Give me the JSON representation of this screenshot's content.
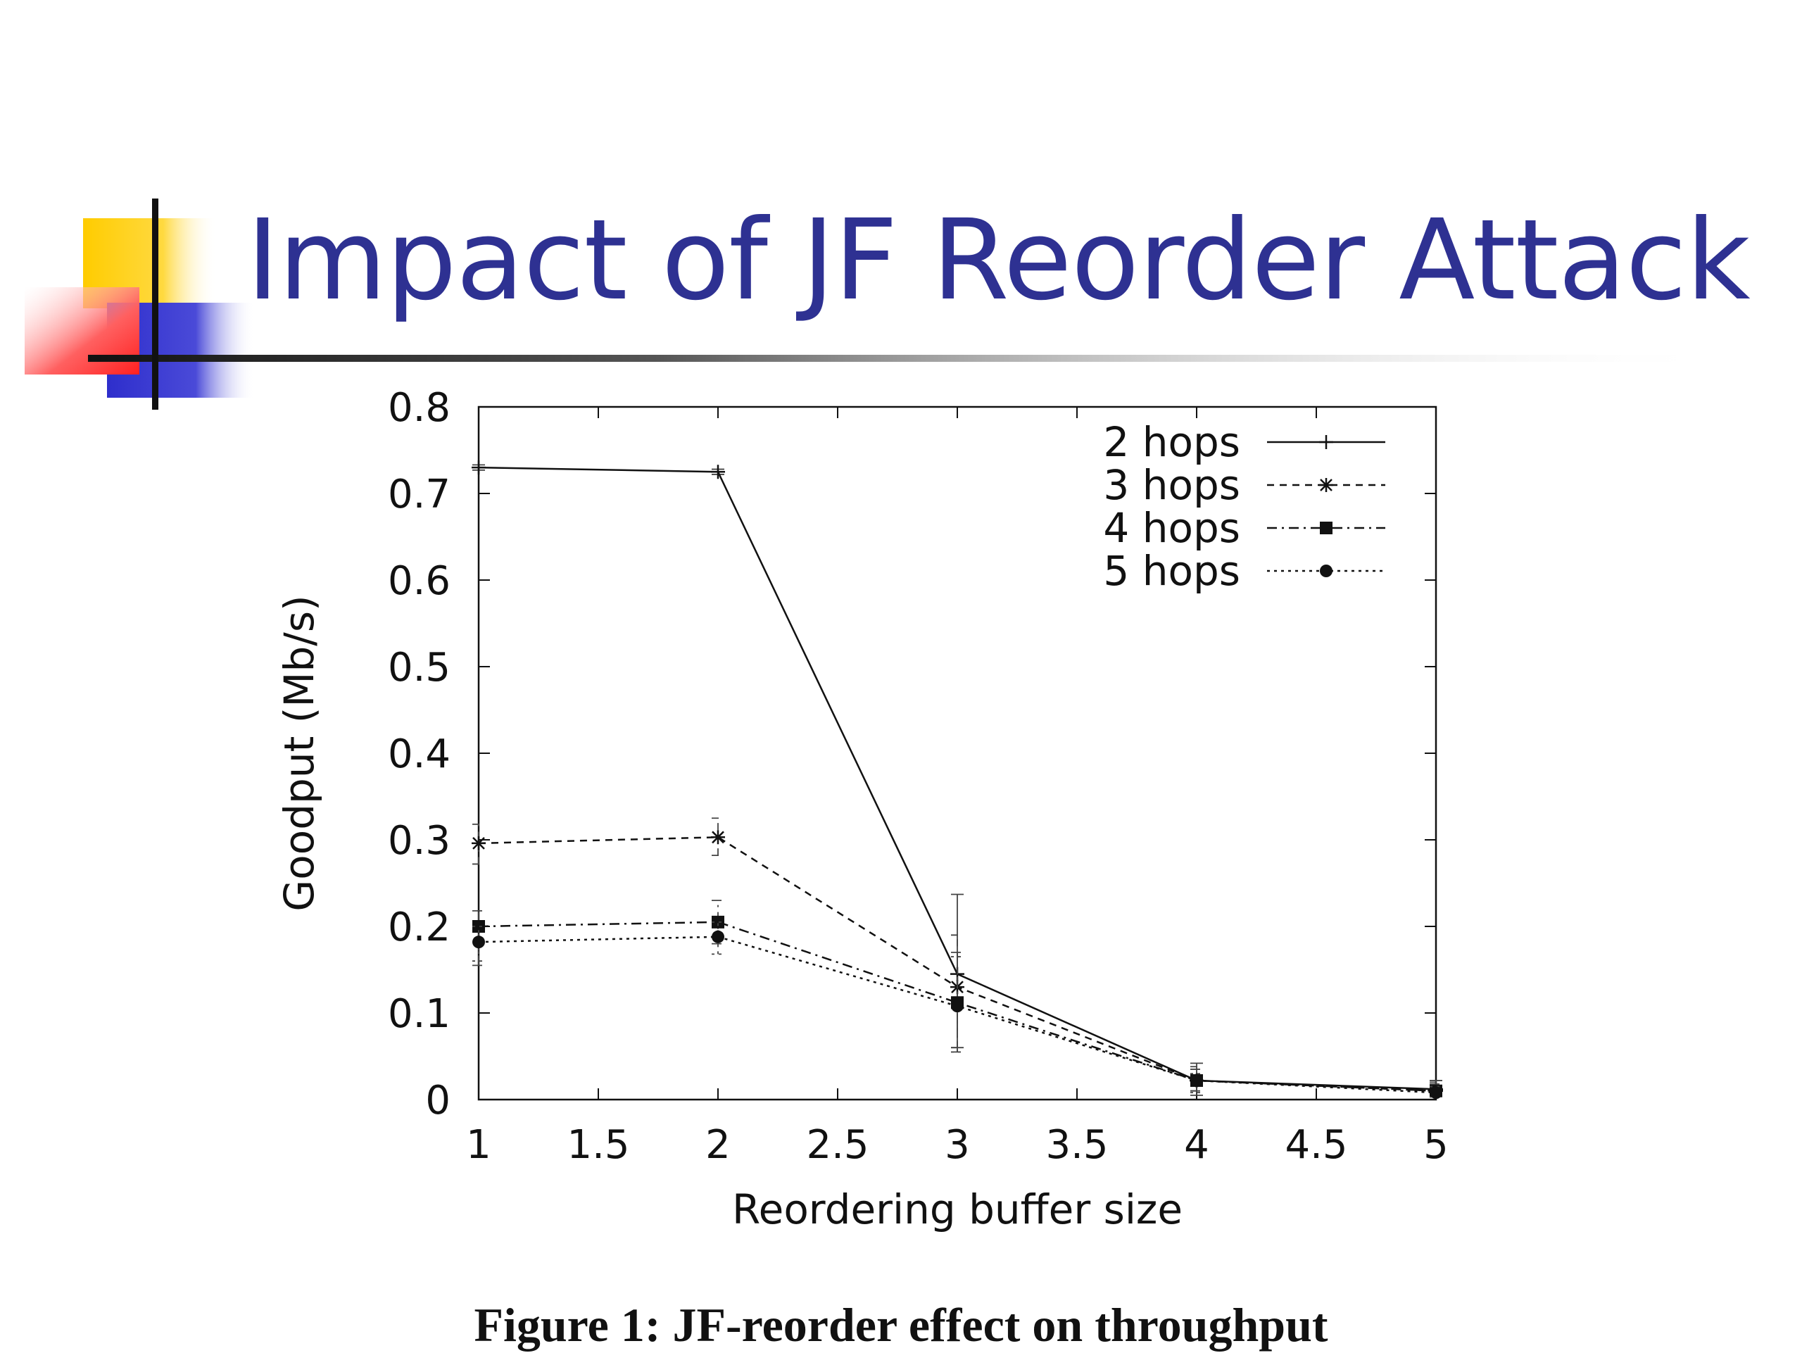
{
  "slide": {
    "title": "Impact of JF Reorder Attack",
    "caption": "Figure 1: JF-reorder effect on throughput"
  },
  "colors": {
    "title": "#2E3192",
    "accent_yellow": "#FFCC00",
    "accent_red": "#FF3333",
    "accent_blue": "#3333CC"
  },
  "chart_data": {
    "type": "line",
    "xlabel": "Reordering buffer size",
    "ylabel": "Goodput (Mb/s)",
    "xlim": [
      1,
      5
    ],
    "ylim": [
      0,
      0.8
    ],
    "xticks": [
      1,
      1.5,
      2,
      2.5,
      3,
      3.5,
      4,
      4.5,
      5
    ],
    "xtick_labels": [
      "1",
      "1.5",
      "2",
      "2.5",
      "3",
      "3.5",
      "4",
      "4.5",
      "5"
    ],
    "yticks": [
      0,
      0.1,
      0.2,
      0.3,
      0.4,
      0.5,
      0.6,
      0.7,
      0.8
    ],
    "ytick_labels": [
      "0",
      "0.1",
      "0.2",
      "0.3",
      "0.4",
      "0.5",
      "0.6",
      "0.7",
      "0.8"
    ],
    "grid": false,
    "legend_position": "top-right",
    "x": [
      1,
      2,
      3,
      4,
      5
    ],
    "series": [
      {
        "name": "2 hops",
        "marker": "plus",
        "dash": "solid",
        "values": [
          0.73,
          0.725,
          0.145,
          0.022,
          0.012
        ],
        "err_low": [
          0.727,
          0.722,
          0.06,
          0.005,
          0.005
        ],
        "err_high": [
          0.733,
          0.728,
          0.237,
          0.042,
          0.022
        ]
      },
      {
        "name": "3 hops",
        "marker": "star",
        "dash": "dashed",
        "values": [
          0.296,
          0.303,
          0.13,
          0.022,
          0.01
        ],
        "err_low": [
          0.272,
          0.282,
          0.06,
          0.01,
          0.004
        ],
        "err_high": [
          0.318,
          0.325,
          0.19,
          0.038,
          0.02
        ]
      },
      {
        "name": "4 hops",
        "marker": "square",
        "dash": "dashdot",
        "values": [
          0.2,
          0.205,
          0.112,
          0.022,
          0.01
        ],
        "err_low": [
          0.155,
          0.18,
          0.055,
          0.01,
          0.004
        ],
        "err_high": [
          0.218,
          0.23,
          0.17,
          0.035,
          0.018
        ]
      },
      {
        "name": "5 hops",
        "marker": "circle",
        "dash": "dotted",
        "values": [
          0.182,
          0.188,
          0.108,
          0.022,
          0.008
        ],
        "err_low": [
          0.16,
          0.168,
          0.055,
          0.008,
          0.003
        ],
        "err_high": [
          0.2,
          0.205,
          0.165,
          0.03,
          0.015
        ]
      }
    ]
  }
}
